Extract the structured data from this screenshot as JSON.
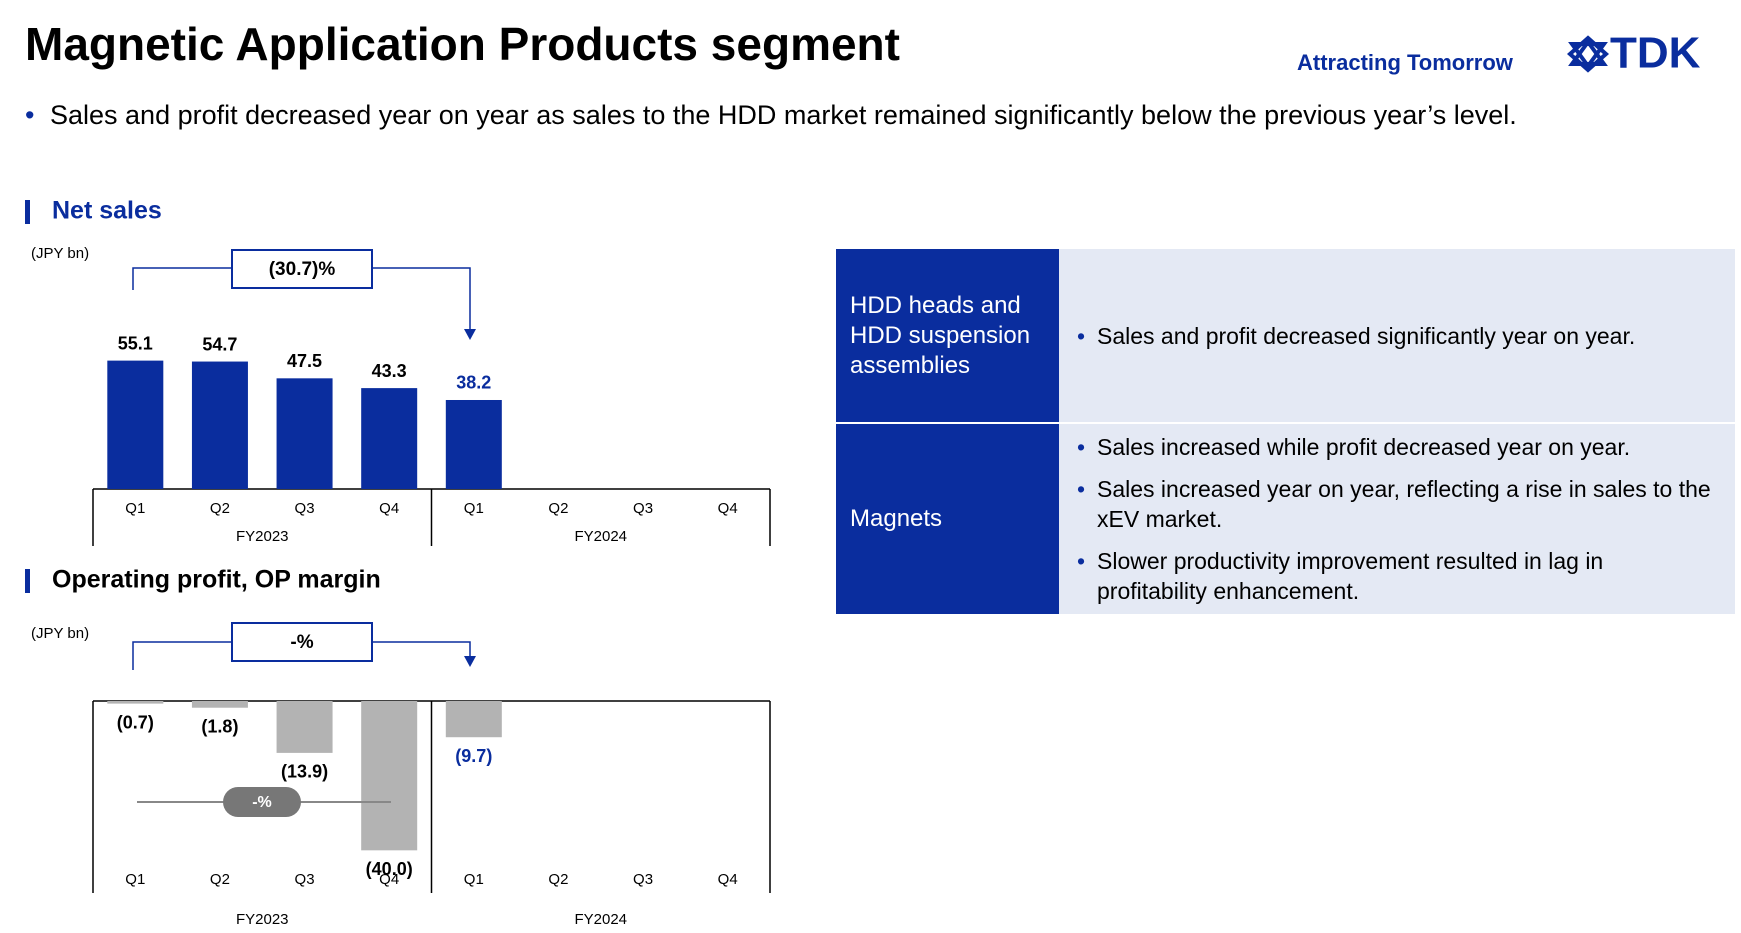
{
  "title": "Magnetic Application Products segment",
  "tagline": "Attracting Tomorrow",
  "logo": "TDK",
  "bullet": "Sales and profit decreased year on year as sales to the HDD market remained significantly below the previous year’s level.",
  "chart_data": [
    {
      "type": "bar",
      "title": "Net sales",
      "unit_label": "(JPY bn)",
      "change_label": "(30.7)%",
      "groups": [
        {
          "name": "FY2023",
          "categories": [
            "Q1",
            "Q2",
            "Q3",
            "Q4"
          ]
        },
        {
          "name": "FY2024",
          "categories": [
            "Q1",
            "Q2",
            "Q3",
            "Q4"
          ]
        }
      ],
      "values": [
        55.1,
        54.7,
        47.5,
        43.3,
        38.2,
        null,
        null,
        null
      ],
      "label_colors": [
        "#000000",
        "#000000",
        "#000000",
        "#000000",
        "#0a2d9e",
        null,
        null,
        null
      ],
      "color": "#0a2d9e",
      "ylim": [
        0,
        100
      ]
    },
    {
      "type": "bar",
      "title": "Operating profit, OP margin",
      "unit_label": "(JPY bn)",
      "change_label": "-%",
      "margin_label": "-%",
      "groups": [
        {
          "name": "FY2023",
          "categories": [
            "Q1",
            "Q2",
            "Q3",
            "Q4"
          ]
        },
        {
          "name": "FY2024",
          "categories": [
            "Q1",
            "Q2",
            "Q3",
            "Q4"
          ]
        }
      ],
      "values": [
        -0.7,
        -1.8,
        -13.9,
        -40.0,
        -9.7,
        null,
        null,
        null
      ],
      "value_labels": [
        "(0.7)",
        "(1.8)",
        "(13.9)",
        "(40.0)",
        "(9.7)",
        null,
        null,
        null
      ],
      "label_colors": [
        "#000000",
        "#000000",
        "#000000",
        "#000000",
        "#0a2d9e",
        null,
        null,
        null
      ],
      "color": "#b3b3b3",
      "ylim": [
        -45,
        0
      ]
    }
  ],
  "table": {
    "rows": [
      {
        "header": "HDD heads and HDD suspension assemblies",
        "bullets": [
          "Sales and profit decreased significantly year on year."
        ]
      },
      {
        "header": "Magnets",
        "bullets": [
          "Sales increased while profit decreased year on year.",
          "Sales increased year on year, reflecting a rise in sales to the xEV market.",
          "Slower productivity improvement resulted in lag in profitability enhancement."
        ]
      }
    ]
  }
}
